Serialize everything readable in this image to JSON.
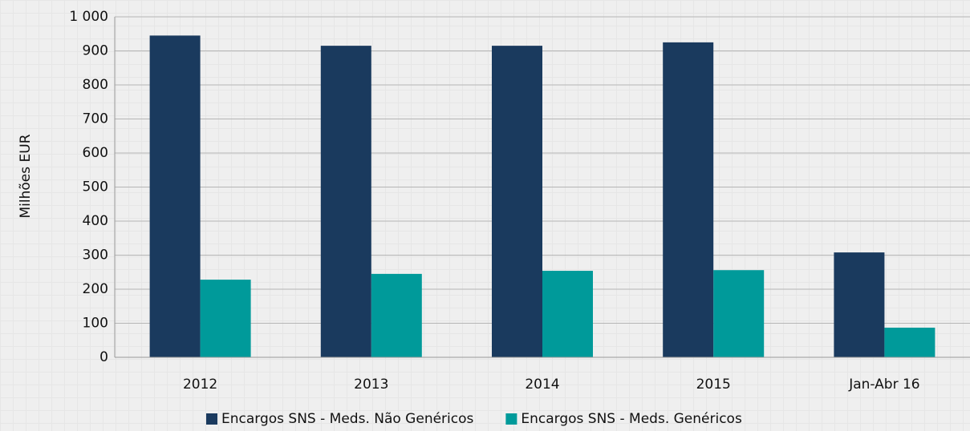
{
  "chart_data": {
    "type": "bar",
    "categories": [
      "2012",
      "2013",
      "2014",
      "2015",
      "Jan-Abr 16"
    ],
    "series": [
      {
        "name": "Encargos SNS - Meds. Não Genéricos",
        "color": "#1a3a5e",
        "values": [
          945,
          915,
          915,
          925,
          308
        ]
      },
      {
        "name": "Encargos SNS - Meds. Genéricos",
        "color": "#009a9a",
        "values": [
          228,
          245,
          254,
          256,
          87
        ]
      }
    ],
    "y_label": "Milhões EUR",
    "ylim": [
      0,
      1000
    ],
    "yticks": [
      0,
      100,
      200,
      300,
      400,
      500,
      600,
      700,
      800,
      900,
      {
        "value": 1000,
        "label": "1 000"
      }
    ],
    "grid": true,
    "legend": "bottom"
  }
}
